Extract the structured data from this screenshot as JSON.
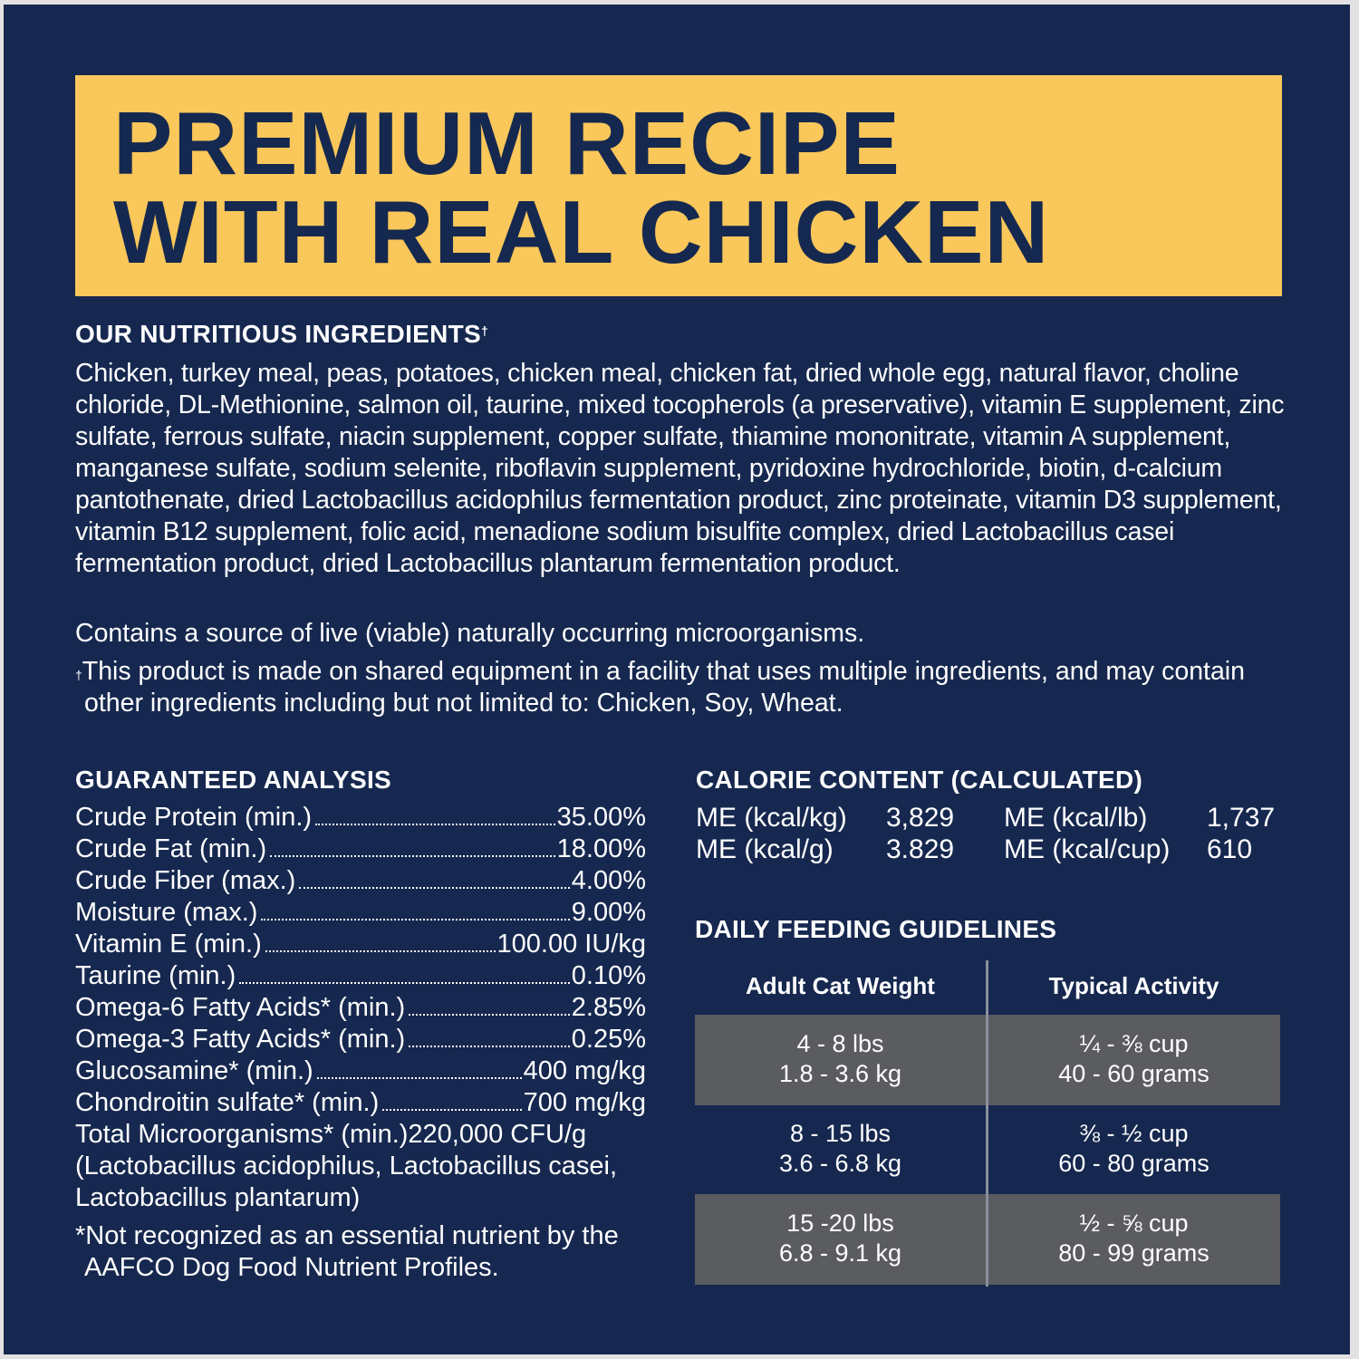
{
  "colors": {
    "background": "#16284f",
    "banner": "#f9c75a",
    "banner_text": "#15284f",
    "table_shade": "#5b5c60"
  },
  "title": {
    "line1": "PREMIUM RECIPE",
    "line2": "WITH REAL CHICKEN"
  },
  "ingredients": {
    "heading": "OUR NUTRITIOUS INGREDIENTS",
    "heading_mark": "†",
    "text": "Chicken, turkey meal, peas, potatoes, chicken meal, chicken fat, dried whole egg, natural flavor, choline chloride, DL-Methionine, salmon oil, taurine, mixed tocopherols (a preservative), vitamin E supplement, zinc sulfate, ferrous sulfate, niacin supplement, copper sulfate, thiamine mononitrate, vitamin A supplement, manganese sulfate, sodium selenite, riboflavin supplement, pyridoxine hydrochloride, biotin, d-calcium pantothenate, dried Lactobacillus acidophilus fermentation product, zinc proteinate, vitamin D3 supplement, vitamin B12 supplement, folic acid, menadione sodium bisulfite complex, dried Lactobacillus casei fermentation product, dried Lactobacillus plantarum fermentation product.",
    "microorganisms_note": "Contains a source of live (viable) naturally occurring microorganisms.",
    "facility_mark": "†",
    "facility_note": "This product is made on shared equipment in a facility that uses multiple ingredients, and may contain other ingredients including but not limited to: Chicken, Soy, Wheat."
  },
  "guaranteed_analysis": {
    "heading": "GUARANTEED ANALYSIS",
    "rows": [
      {
        "label": "Crude Protein (min.)",
        "value": "35.00%"
      },
      {
        "label": "Crude Fat (min.)",
        "value": "18.00%"
      },
      {
        "label": "Crude Fiber (max.)",
        "value": "4.00%"
      },
      {
        "label": "Moisture (max.)",
        "value": "9.00%"
      },
      {
        "label": "Vitamin E (min.)",
        "value": "100.00 IU/kg"
      },
      {
        "label": "Taurine (min.)",
        "value": "0.10%"
      },
      {
        "label": "Omega-6 Fatty Acids* (min.)",
        "value": "2.85%"
      },
      {
        "label": "Omega-3 Fatty Acids* (min.)",
        "value": "0.25%"
      },
      {
        "label": "Glucosamine* (min.)",
        "value": "400 mg/kg"
      },
      {
        "label": "Chondroitin sulfate* (min.)",
        "value": "700 mg/kg"
      },
      {
        "label": "Total Microorganisms* (min.)",
        "value": "220,000 CFU/g"
      }
    ],
    "microorganisms_detail": "(Lactobacillus acidophilus, Lactobacillus casei, Lactobacillus plantarum)",
    "footnote": "*Not recognized as an essential nutrient by the AAFCO Dog Food Nutrient Profiles."
  },
  "calorie_content": {
    "heading": "CALORIE CONTENT (CALCULATED)",
    "items": [
      {
        "label": "ME (kcal/kg)",
        "value": "3,829"
      },
      {
        "label": "ME (kcal/lb)",
        "value": "1,737"
      },
      {
        "label": "ME (kcal/g)",
        "value": "3.829"
      },
      {
        "label": "ME (kcal/cup)",
        "value": "610"
      }
    ]
  },
  "feeding": {
    "heading": "DAILY FEEDING GUIDELINES",
    "columns": [
      "Adult Cat Weight",
      "Typical Activity"
    ],
    "rows": [
      {
        "weight_lbs": "4 - 8 lbs",
        "weight_kg": "1.8 - 3.6 kg",
        "cups": "¼ - ⅜ cup",
        "grams": "40 - 60 grams"
      },
      {
        "weight_lbs": "8 - 15 lbs",
        "weight_kg": "3.6 - 6.8 kg",
        "cups": "⅜ - ½ cup",
        "grams": "60 - 80 grams"
      },
      {
        "weight_lbs": "15 -20 lbs",
        "weight_kg": "6.8 - 9.1 kg",
        "cups": "½ - ⅝ cup",
        "grams": "80 - 99 grams"
      }
    ]
  }
}
